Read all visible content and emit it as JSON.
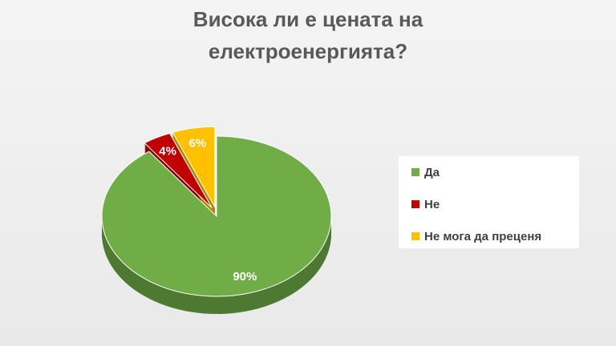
{
  "chart_data": {
    "type": "pie",
    "title": "Висока ли е цената на електроенергията?",
    "categories": [
      "Да",
      "Не",
      "Не мога да преценя"
    ],
    "values": [
      90,
      4,
      6
    ],
    "value_labels": [
      "90%",
      "4%",
      "6%"
    ],
    "colors": [
      "#70ad47",
      "#c00000",
      "#ffc000"
    ],
    "legend": "right"
  }
}
